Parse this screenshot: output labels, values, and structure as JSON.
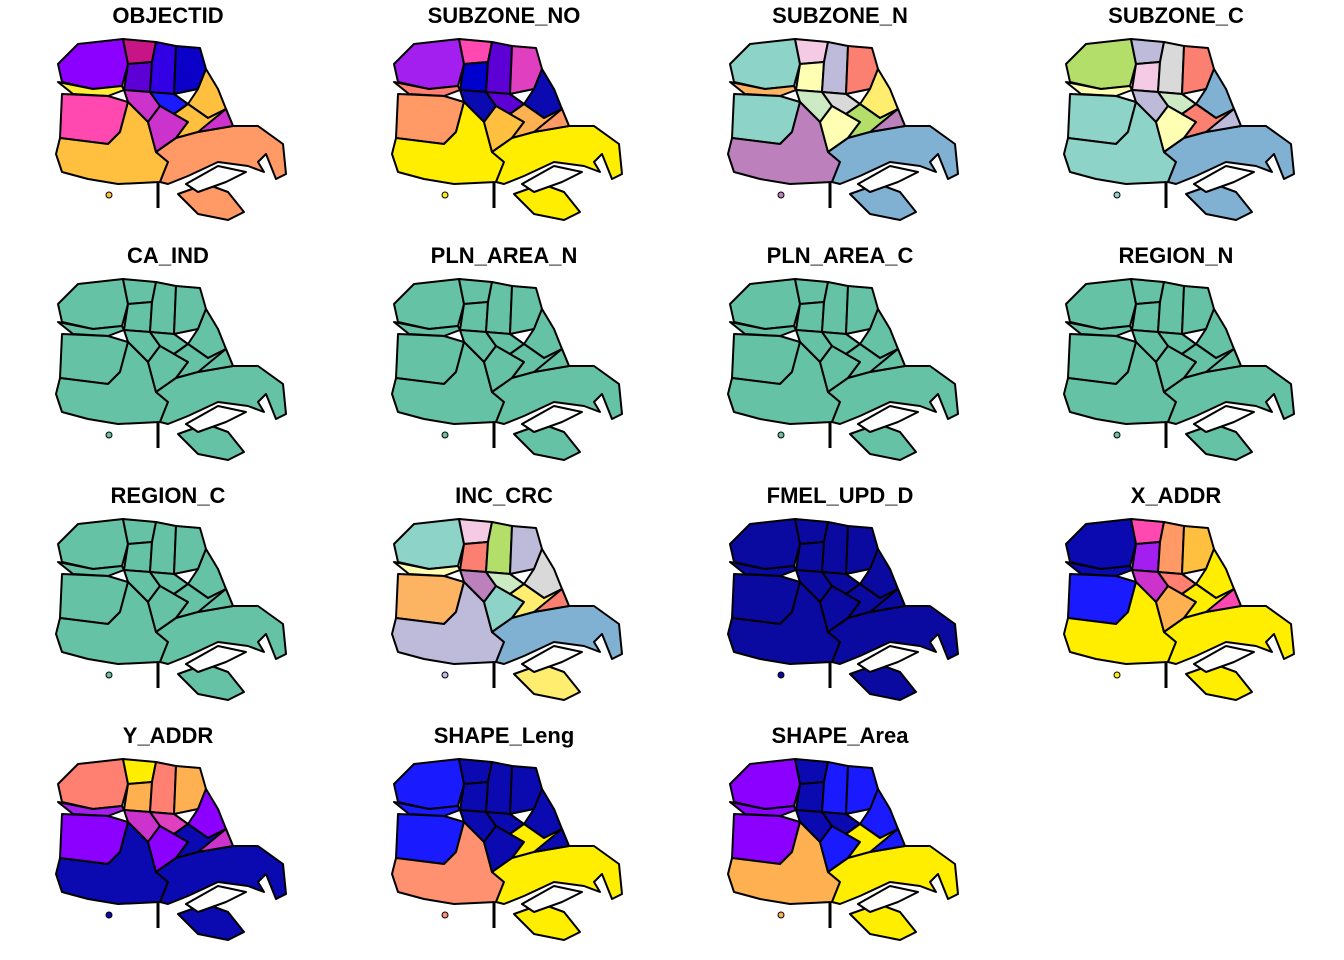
{
  "panels": [
    {
      "title": "OBJECTID",
      "colors": [
        "#8B00FF",
        "#C71585",
        "#5D00D6",
        "#3300E6",
        "#0A00C8",
        "#FFEE33",
        "#FF49B0",
        "#CC33CC",
        "#1A1AFF",
        "#FFC040",
        "#FFC040",
        "#CC33CC",
        "#FFC040",
        "#FF9966",
        "#FF9966",
        "#CC33CC"
      ]
    },
    {
      "title": "SUBZONE_NO",
      "colors": [
        "#A31FF0",
        "#FF49B0",
        "#0000CC",
        "#5D00D6",
        "#E040C0",
        "#FF8070",
        "#FF9966",
        "#0A0AB0",
        "#5D00D6",
        "#0A0AB0",
        "#FFEE00",
        "#FFC040",
        "#FFB050",
        "#FFEE00",
        "#FFEE00",
        "#FF9966"
      ]
    },
    {
      "title": "SUBZONE_N",
      "colors": [
        "#8DD3C7",
        "#F4CAE4",
        "#FFFFB3",
        "#BEBADA",
        "#FB8072",
        "#FDB462",
        "#8DD3C7",
        "#CCEBC5",
        "#D9D9D9",
        "#FFED6F",
        "#BC80BD",
        "#FFFFB3",
        "#B3DE69",
        "#80B1D3",
        "#80B1D3",
        "#BC80BD"
      ]
    },
    {
      "title": "SUBZONE_C",
      "colors": [
        "#B3DE69",
        "#BEBADA",
        "#F4CAE4",
        "#D9D9D9",
        "#FB8072",
        "#FFFFB3",
        "#8DD3C7",
        "#BEBADA",
        "#CCEBC5",
        "#80B1D3",
        "#8DD3C7",
        "#FFFFB3",
        "#FB8072",
        "#80B1D3",
        "#80B1D3",
        "#BEBADA"
      ]
    },
    {
      "title": "CA_IND",
      "colors": [
        "#66C2A5"
      ]
    },
    {
      "title": "PLN_AREA_N",
      "colors": [
        "#66C2A5"
      ]
    },
    {
      "title": "PLN_AREA_C",
      "colors": [
        "#66C2A5"
      ]
    },
    {
      "title": "REGION_N",
      "colors": [
        "#66C2A5"
      ]
    },
    {
      "title": "REGION_C",
      "colors": [
        "#66C2A5"
      ]
    },
    {
      "title": "INC_CRC",
      "colors": [
        "#8DD3C7",
        "#F4CAE4",
        "#FB8072",
        "#B3DE69",
        "#BEBADA",
        "#FFFFB3",
        "#FDB462",
        "#BC80BD",
        "#CCEBC5",
        "#D9D9D9",
        "#BEBADA",
        "#8DD3C7",
        "#FFED6F",
        "#80B1D3",
        "#FFED6F",
        "#FB8072"
      ]
    },
    {
      "title": "FMEL_UPD_D",
      "colors": [
        "#0A0AA0"
      ]
    },
    {
      "title": "X_ADDR",
      "colors": [
        "#0A0AB0",
        "#FF49B0",
        "#A31FF0",
        "#FF9966",
        "#FFC040",
        "#0A0AB0",
        "#1A1AFF",
        "#CC33CC",
        "#FF8070",
        "#FFEE00",
        "#FFEE00",
        "#FFB050",
        "#FFEE00",
        "#FFEE00",
        "#FFEE00",
        "#FF49B0"
      ]
    },
    {
      "title": "Y_ADDR",
      "colors": [
        "#FF8070",
        "#FFEE00",
        "#FFB050",
        "#FF8070",
        "#FFB050",
        "#A31FF0",
        "#8B00FF",
        "#CC33CC",
        "#E040C0",
        "#8B00FF",
        "#0A0AB0",
        "#8B00FF",
        "#0A0AB0",
        "#0A0AB0",
        "#0A0AB0",
        "#CC33CC"
      ]
    },
    {
      "title": "SHAPE_Leng",
      "colors": [
        "#1A1AFF",
        "#0A0AB0",
        "#0A0AB0",
        "#0A0AB0",
        "#0A0AB0",
        "#1A1AFF",
        "#1A1AFF",
        "#0A0AB0",
        "#0A0AB0",
        "#0A0AB0",
        "#FF9070",
        "#0A0AB0",
        "#FFEE00",
        "#FFEE00",
        "#FFEE00",
        "#0A0AB0"
      ]
    },
    {
      "title": "SHAPE_Area",
      "colors": [
        "#8B00FF",
        "#0A0AB0",
        "#0A0AB0",
        "#1A1AFF",
        "#1A1AFF",
        "#8B00FF",
        "#8B00FF",
        "#0A0AB0",
        "#0A0AB0",
        "#1A1AFF",
        "#FFB050",
        "#1A1AFF",
        "#FFEE00",
        "#FFEE00",
        "#FFEE00",
        "#1A1AFF"
      ]
    }
  ]
}
